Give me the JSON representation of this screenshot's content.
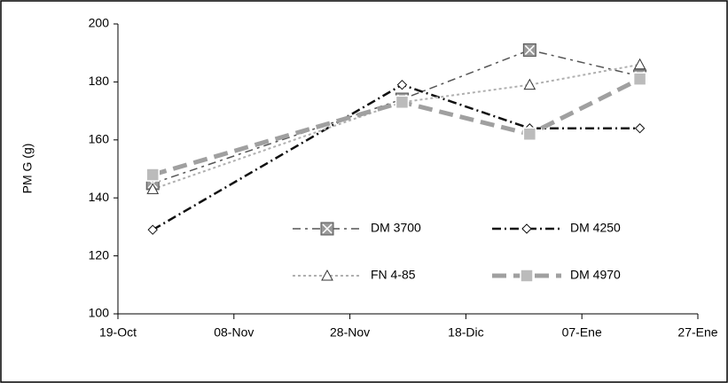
{
  "chart_data": {
    "type": "line",
    "y_label": "PM G  (g)",
    "x": [
      6,
      49,
      71,
      90
    ],
    "xlim": [
      0,
      100
    ],
    "xticks": [
      {
        "value": 0,
        "label": "19-Oct"
      },
      {
        "value": 20,
        "label": "08-Nov"
      },
      {
        "value": 40,
        "label": "28-Nov"
      },
      {
        "value": 60,
        "label": "18-Dic"
      },
      {
        "value": 80,
        "label": "07-Ene"
      },
      {
        "value": 100,
        "label": "27-Ene"
      }
    ],
    "ylim": [
      100,
      200
    ],
    "yticks": [
      100,
      120,
      140,
      160,
      180,
      200
    ],
    "grid": false,
    "series": [
      {
        "name": "DM 3700",
        "color": "#555555",
        "values": [
          145,
          174,
          191,
          182
        ]
      },
      {
        "name": "DM 4250",
        "color": "#111111",
        "values": [
          129,
          179,
          164,
          164
        ]
      },
      {
        "name": "FN 4-85",
        "color": "#b0b0b0",
        "values": [
          143,
          173,
          179,
          186
        ]
      },
      {
        "name": "DM 4970",
        "color": "#a0a0a0",
        "values": [
          148,
          173,
          162,
          181
        ]
      }
    ]
  }
}
